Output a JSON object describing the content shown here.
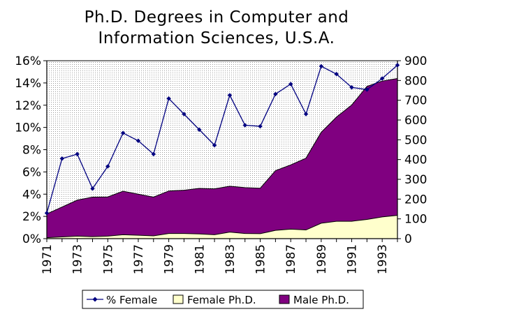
{
  "chart_data": {
    "type": "area",
    "title_lines": [
      "Ph.D. Degrees in Computer and",
      "Information Sciences, U.S.A."
    ],
    "years": [
      1971,
      1972,
      1973,
      1974,
      1975,
      1976,
      1977,
      1978,
      1979,
      1980,
      1981,
      1982,
      1983,
      1984,
      1985,
      1986,
      1987,
      1988,
      1989,
      1990,
      1991,
      1992,
      1993,
      1994
    ],
    "x_tick_labels": [
      "1971",
      "1973",
      "1975",
      "1977",
      "1979",
      "1981",
      "1983",
      "1985",
      "1987",
      "1989",
      "1991",
      "1993"
    ],
    "left_axis": {
      "ticks": [
        "0%",
        "2%",
        "4%",
        "6%",
        "8%",
        "10%",
        "12%",
        "14%",
        "16%"
      ],
      "ylim": [
        0,
        16
      ]
    },
    "right_axis": {
      "ticks": [
        "0",
        "100",
        "200",
        "300",
        "400",
        "500",
        "600",
        "700",
        "800",
        "900"
      ],
      "ylim": [
        0,
        900
      ]
    },
    "series": [
      {
        "name": "% Female",
        "kind": "line",
        "axis": "left",
        "color": "#000080",
        "values": [
          2.3,
          7.2,
          7.6,
          4.5,
          6.5,
          9.5,
          8.8,
          7.6,
          12.6,
          11.2,
          9.8,
          8.4,
          12.9,
          10.2,
          10.1,
          13.0,
          13.9,
          11.2,
          15.5,
          14.8,
          13.6,
          13.4,
          14.4,
          15.6
        ]
      },
      {
        "name": "Female Ph.D.",
        "kind": "area",
        "axis": "right",
        "color": "#ffffcc",
        "values": [
          5,
          9,
          13,
          10,
          13,
          20,
          17,
          14,
          26,
          26,
          24,
          20,
          33,
          26,
          25,
          42,
          48,
          44,
          78,
          88,
          88,
          97,
          110,
          118
        ]
      },
      {
        "name": "Male Ph.D.",
        "kind": "area",
        "axis": "right",
        "color": "#800080",
        "values": [
          120,
          151,
          182,
          200,
          198,
          220,
          208,
          196,
          215,
          219,
          230,
          232,
          232,
          232,
          230,
          302,
          325,
          363,
          460,
          527,
          588,
          673,
          687,
          692
        ]
      }
    ],
    "legend_position": "bottom",
    "grid": false
  }
}
